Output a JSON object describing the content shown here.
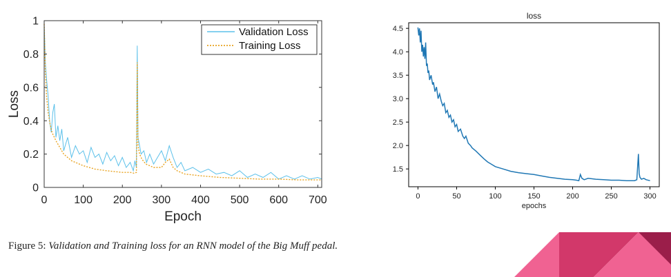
{
  "caption": {
    "prefix": "Figure 5: ",
    "text": "Validation and Training loss for an RNN model of the Big Muff pedal."
  },
  "chart_data": [
    {
      "type": "line",
      "title": "",
      "xlabel": "Epoch",
      "ylabel": "Loss",
      "xlim": [
        0,
        710
      ],
      "ylim": [
        0,
        1
      ],
      "xticks": [
        "0",
        "100",
        "200",
        "300",
        "400",
        "500",
        "600",
        "700"
      ],
      "yticks": [
        "0",
        "0.2",
        "0.4",
        "0.6",
        "0.8",
        "1"
      ],
      "legend": "top-right",
      "grid": false,
      "series": [
        {
          "name": "Validation Loss",
          "color": "#5bc0ea",
          "style": "solid",
          "x": [
            0,
            3,
            6,
            10,
            14,
            18,
            22,
            26,
            30,
            35,
            40,
            45,
            50,
            60,
            70,
            80,
            90,
            100,
            110,
            120,
            130,
            140,
            150,
            160,
            170,
            180,
            190,
            200,
            210,
            220,
            228,
            232,
            236,
            238,
            240,
            244,
            248,
            255,
            262,
            270,
            280,
            290,
            300,
            310,
            320,
            330,
            340,
            350,
            360,
            380,
            400,
            420,
            440,
            460,
            480,
            500,
            520,
            540,
            560,
            580,
            600,
            620,
            640,
            660,
            680,
            700,
            710
          ],
          "y": [
            0.98,
            0.75,
            0.65,
            0.55,
            0.4,
            0.33,
            0.45,
            0.5,
            0.3,
            0.37,
            0.28,
            0.35,
            0.22,
            0.3,
            0.18,
            0.25,
            0.2,
            0.22,
            0.15,
            0.24,
            0.18,
            0.2,
            0.14,
            0.21,
            0.16,
            0.19,
            0.13,
            0.18,
            0.12,
            0.15,
            0.1,
            0.16,
            0.12,
            0.85,
            0.3,
            0.25,
            0.2,
            0.22,
            0.15,
            0.2,
            0.14,
            0.18,
            0.22,
            0.16,
            0.25,
            0.18,
            0.12,
            0.15,
            0.1,
            0.12,
            0.09,
            0.11,
            0.08,
            0.09,
            0.07,
            0.1,
            0.06,
            0.08,
            0.06,
            0.09,
            0.05,
            0.07,
            0.05,
            0.07,
            0.05,
            0.06,
            0.05
          ]
        },
        {
          "name": "Training Loss",
          "color": "#e8a21e",
          "style": "dotted",
          "x": [
            0,
            3,
            6,
            10,
            15,
            20,
            30,
            40,
            50,
            70,
            100,
            130,
            160,
            200,
            220,
            230,
            236,
            238,
            240,
            244,
            250,
            260,
            270,
            280,
            300,
            310,
            320,
            330,
            340,
            360,
            400,
            450,
            500,
            550,
            600,
            650,
            700,
            710
          ],
          "y": [
            0.98,
            0.7,
            0.55,
            0.45,
            0.38,
            0.33,
            0.28,
            0.24,
            0.2,
            0.16,
            0.13,
            0.11,
            0.1,
            0.09,
            0.09,
            0.085,
            0.09,
            0.75,
            0.25,
            0.2,
            0.17,
            0.14,
            0.13,
            0.12,
            0.12,
            0.15,
            0.17,
            0.12,
            0.1,
            0.08,
            0.07,
            0.06,
            0.055,
            0.05,
            0.05,
            0.045,
            0.045,
            0.045
          ]
        }
      ]
    },
    {
      "type": "line",
      "title": "loss",
      "xlabel": "epochs",
      "ylabel": "",
      "xlim": [
        -12,
        312
      ],
      "ylim": [
        1.12,
        4.62
      ],
      "xticks": [
        "0",
        "50",
        "100",
        "150",
        "200",
        "250",
        "300"
      ],
      "yticks": [
        "1.5",
        "2.0",
        "2.5",
        "3.0",
        "3.5",
        "4.0",
        "4.5"
      ],
      "grid": false,
      "series": [
        {
          "name": "",
          "color": "#1f77b4",
          "style": "solid",
          "x": [
            0,
            1,
            2,
            3,
            4,
            5,
            6,
            7,
            8,
            9,
            10,
            11,
            12,
            13,
            14,
            15,
            17,
            19,
            20,
            22,
            24,
            26,
            28,
            30,
            32,
            34,
            36,
            38,
            40,
            42,
            44,
            46,
            48,
            50,
            52,
            55,
            58,
            60,
            62,
            65,
            68,
            70,
            75,
            80,
            85,
            90,
            95,
            100,
            110,
            120,
            130,
            140,
            150,
            160,
            170,
            180,
            190,
            200,
            205,
            208,
            210,
            212,
            215,
            220,
            230,
            240,
            250,
            260,
            270,
            280,
            283,
            285,
            286,
            287,
            289,
            292,
            295,
            300
          ],
          "y": [
            4.52,
            4.35,
            4.5,
            4.2,
            4.45,
            4.0,
            4.15,
            3.9,
            4.1,
            3.85,
            4.2,
            3.7,
            3.75,
            3.55,
            3.6,
            3.4,
            3.5,
            3.3,
            3.35,
            3.15,
            3.25,
            3.0,
            3.1,
            2.95,
            2.85,
            2.9,
            2.7,
            2.75,
            2.6,
            2.65,
            2.5,
            2.55,
            2.4,
            2.45,
            2.3,
            2.35,
            2.2,
            2.15,
            2.2,
            2.05,
            2.0,
            1.95,
            1.88,
            1.8,
            1.72,
            1.65,
            1.6,
            1.55,
            1.5,
            1.45,
            1.42,
            1.4,
            1.38,
            1.35,
            1.32,
            1.3,
            1.28,
            1.27,
            1.26,
            1.25,
            1.38,
            1.3,
            1.27,
            1.3,
            1.28,
            1.27,
            1.26,
            1.26,
            1.25,
            1.25,
            1.27,
            1.82,
            1.4,
            1.32,
            1.28,
            1.3,
            1.27,
            1.25
          ]
        }
      ]
    }
  ]
}
